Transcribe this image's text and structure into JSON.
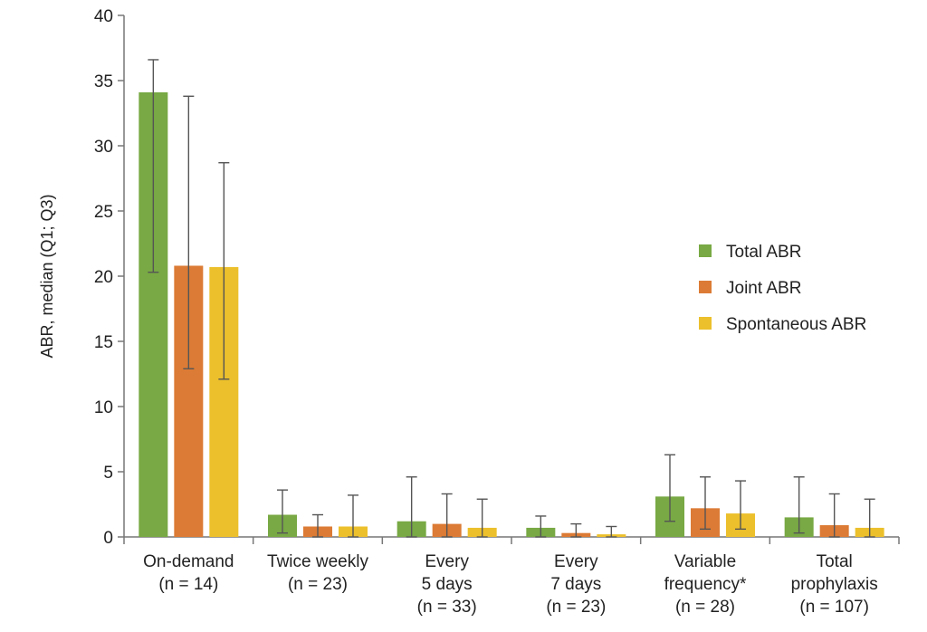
{
  "chart_data": {
    "type": "bar",
    "ylabel": "ABR, median (Q1; Q3)",
    "ylim": [
      0,
      40
    ],
    "yticks": [
      0,
      5,
      10,
      15,
      20,
      25,
      30,
      35,
      40
    ],
    "grid": false,
    "legend_position": "right",
    "categories": [
      [
        "On-demand",
        "(n = 14)"
      ],
      [
        "Twice weekly",
        "(n = 23)"
      ],
      [
        "Every",
        "5 days",
        "(n = 33)"
      ],
      [
        "Every",
        "7 days",
        "(n = 23)"
      ],
      [
        "Variable",
        "frequency*",
        "(n = 28)"
      ],
      [
        "Total",
        "prophylaxis",
        "(n = 107)"
      ]
    ],
    "series": [
      {
        "name": "Total ABR",
        "color": "#78a944",
        "values": [
          34.1,
          1.7,
          1.2,
          0.7,
          3.1,
          1.5
        ],
        "q1": [
          20.3,
          0.3,
          0.0,
          0.0,
          1.2,
          0.3
        ],
        "q3": [
          36.6,
          3.6,
          4.6,
          1.6,
          6.3,
          4.6
        ]
      },
      {
        "name": "Joint ABR",
        "color": "#dc7b35",
        "values": [
          20.8,
          0.8,
          1.0,
          0.3,
          2.2,
          0.9
        ],
        "q1": [
          12.9,
          0.0,
          0.0,
          0.0,
          0.6,
          0.0
        ],
        "q3": [
          33.8,
          1.7,
          3.3,
          1.0,
          4.6,
          3.3
        ]
      },
      {
        "name": "Spontaneous ABR",
        "color": "#ecc02c",
        "values": [
          20.7,
          0.8,
          0.7,
          0.2,
          1.8,
          0.7
        ],
        "q1": [
          12.1,
          0.0,
          0.0,
          0.0,
          0.6,
          0.0
        ],
        "q3": [
          28.7,
          3.2,
          2.9,
          0.8,
          4.3,
          2.9
        ]
      }
    ]
  }
}
